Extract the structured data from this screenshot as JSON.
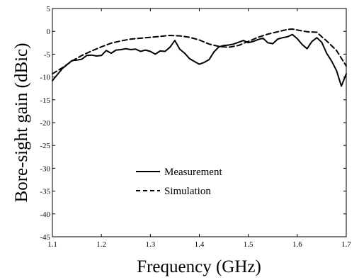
{
  "chart_data": {
    "type": "line",
    "title": "",
    "xlabel": "Frequency (GHz)",
    "ylabel": "Bore-sight gain (dBic)",
    "xlim": [
      1.1,
      1.7
    ],
    "ylim": [
      -45,
      5
    ],
    "xticks": [
      "1.1",
      "1.2",
      "1.3",
      "1.4",
      "1.5",
      "1.6",
      "1.7"
    ],
    "yticks": [
      "5",
      "0",
      "-5",
      "-10",
      "-15",
      "-20",
      "-25",
      "-30",
      "-35",
      "-40",
      "-45"
    ],
    "grid": false,
    "legend_position": "lower-left",
    "series": [
      {
        "name": "Measurement",
        "style": "solid",
        "color": "#000000",
        "x": [
          1.1,
          1.11,
          1.12,
          1.13,
          1.14,
          1.15,
          1.16,
          1.17,
          1.18,
          1.19,
          1.2,
          1.21,
          1.22,
          1.23,
          1.24,
          1.25,
          1.26,
          1.27,
          1.28,
          1.29,
          1.3,
          1.31,
          1.32,
          1.33,
          1.34,
          1.35,
          1.36,
          1.37,
          1.38,
          1.39,
          1.4,
          1.41,
          1.42,
          1.43,
          1.44,
          1.45,
          1.46,
          1.47,
          1.48,
          1.49,
          1.5,
          1.51,
          1.52,
          1.53,
          1.54,
          1.55,
          1.56,
          1.57,
          1.58,
          1.59,
          1.6,
          1.61,
          1.62,
          1.63,
          1.64,
          1.65,
          1.66,
          1.67,
          1.68,
          1.69,
          1.7
        ],
        "y": [
          -10.8,
          -9.5,
          -8.2,
          -7.3,
          -6.4,
          -6.3,
          -6.1,
          -5.3,
          -5.2,
          -5.4,
          -5.3,
          -4.2,
          -4.8,
          -4.1,
          -4.0,
          -3.8,
          -4.0,
          -3.9,
          -4.4,
          -4.1,
          -4.4,
          -5.0,
          -4.3,
          -4.4,
          -3.5,
          -2.0,
          -3.9,
          -4.8,
          -6.0,
          -6.6,
          -7.2,
          -6.8,
          -6.2,
          -4.5,
          -3.4,
          -3.1,
          -3.0,
          -2.8,
          -2.4,
          -2.0,
          -2.5,
          -2.2,
          -1.8,
          -1.5,
          -2.5,
          -2.7,
          -1.7,
          -1.4,
          -1.2,
          -0.7,
          -1.6,
          -2.9,
          -3.8,
          -2.2,
          -1.4,
          -2.4,
          -4.8,
          -6.5,
          -8.6,
          -12.0,
          -9.3
        ]
      },
      {
        "name": "Simulation",
        "style": "dashed",
        "color": "#000000",
        "x": [
          1.1,
          1.12,
          1.14,
          1.16,
          1.18,
          1.2,
          1.22,
          1.24,
          1.26,
          1.28,
          1.3,
          1.32,
          1.34,
          1.36,
          1.38,
          1.4,
          1.42,
          1.44,
          1.46,
          1.48,
          1.5,
          1.52,
          1.54,
          1.56,
          1.58,
          1.59,
          1.6,
          1.62,
          1.64,
          1.65,
          1.66,
          1.68,
          1.7
        ],
        "y": [
          -9.3,
          -8.0,
          -6.5,
          -5.3,
          -4.3,
          -3.4,
          -2.6,
          -2.1,
          -1.7,
          -1.5,
          -1.3,
          -1.1,
          -0.9,
          -1.0,
          -1.3,
          -1.9,
          -2.8,
          -3.3,
          -3.5,
          -3.1,
          -2.2,
          -1.3,
          -0.6,
          -0.1,
          0.4,
          0.5,
          0.3,
          -0.1,
          -0.2,
          -1.2,
          -2.1,
          -4.2,
          -7.6
        ]
      }
    ]
  }
}
